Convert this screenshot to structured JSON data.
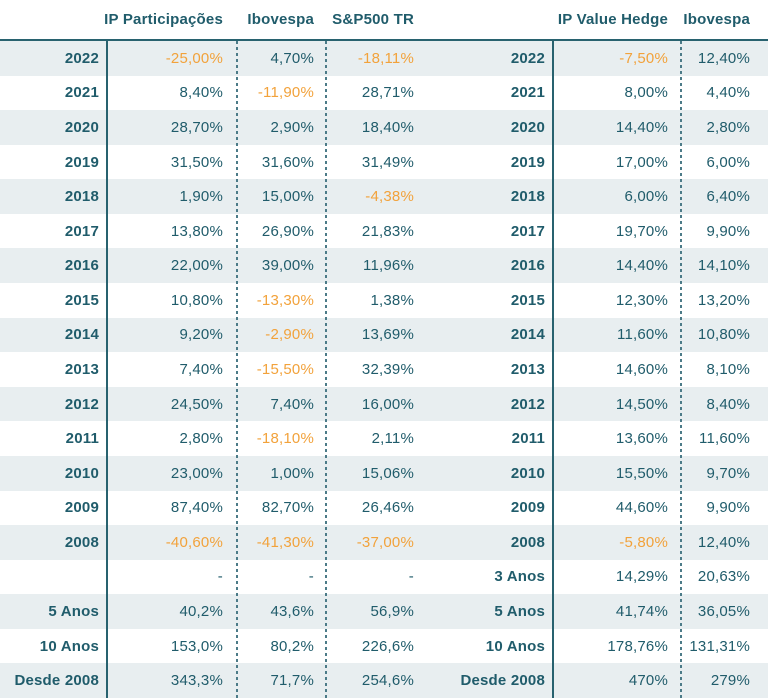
{
  "colors": {
    "teal": "#205C6B",
    "orange": "#F2A23B",
    "stripe": "#E8EEF0",
    "line_solid": "#28626F",
    "line_dashed": "#4C7B88"
  },
  "chart_data": [
    {
      "type": "table",
      "title": "IP Participações vs benchmarks — annual returns",
      "columns": [
        "",
        "IP Participações",
        "Ibovespa",
        "S&P500 TR"
      ],
      "rows": [
        [
          "2022",
          "-25,00%",
          "4,70%",
          "-18,11%"
        ],
        [
          "2021",
          "8,40%",
          "-11,90%",
          "28,71%"
        ],
        [
          "2020",
          "28,70%",
          "2,90%",
          "18,40%"
        ],
        [
          "2019",
          "31,50%",
          "31,60%",
          "31,49%"
        ],
        [
          "2018",
          "1,90%",
          "15,00%",
          "-4,38%"
        ],
        [
          "2017",
          "13,80%",
          "26,90%",
          "21,83%"
        ],
        [
          "2016",
          "22,00%",
          "39,00%",
          "11,96%"
        ],
        [
          "2015",
          "10,80%",
          "-13,30%",
          "1,38%"
        ],
        [
          "2014",
          "9,20%",
          "-2,90%",
          "13,69%"
        ],
        [
          "2013",
          "7,40%",
          "-15,50%",
          "32,39%"
        ],
        [
          "2012",
          "24,50%",
          "7,40%",
          "16,00%"
        ],
        [
          "2011",
          "2,80%",
          "-18,10%",
          "2,11%"
        ],
        [
          "2010",
          "23,00%",
          "1,00%",
          "15,06%"
        ],
        [
          "2009",
          "87,40%",
          "82,70%",
          "26,46%"
        ],
        [
          "2008",
          "-40,60%",
          "-41,30%",
          "-37,00%"
        ],
        [
          "",
          "-",
          "-",
          "-"
        ],
        [
          "5 Anos",
          "40,2%",
          "43,6%",
          "56,9%"
        ],
        [
          "10 Anos",
          "153,0%",
          "80,2%",
          "226,6%"
        ],
        [
          "Desde 2008",
          "343,3%",
          "71,7%",
          "254,6%"
        ]
      ]
    },
    {
      "type": "table",
      "title": "IP Value Hedge vs Ibovespa — annual returns",
      "columns": [
        "",
        "IP Value Hedge",
        "Ibovespa"
      ],
      "rows": [
        [
          "2022",
          "-7,50%",
          "12,40%"
        ],
        [
          "2021",
          "8,00%",
          "4,40%"
        ],
        [
          "2020",
          "14,40%",
          "2,80%"
        ],
        [
          "2019",
          "17,00%",
          "6,00%"
        ],
        [
          "2018",
          "6,00%",
          "6,40%"
        ],
        [
          "2017",
          "19,70%",
          "9,90%"
        ],
        [
          "2016",
          "14,40%",
          "14,10%"
        ],
        [
          "2015",
          "12,30%",
          "13,20%"
        ],
        [
          "2014",
          "11,60%",
          "10,80%"
        ],
        [
          "2013",
          "14,60%",
          "8,10%"
        ],
        [
          "2012",
          "14,50%",
          "8,40%"
        ],
        [
          "2011",
          "13,60%",
          "11,60%"
        ],
        [
          "2010",
          "15,50%",
          "9,70%"
        ],
        [
          "2009",
          "44,60%",
          "9,90%"
        ],
        [
          "2008",
          "-5,80%",
          "12,40%"
        ],
        [
          "3 Anos",
          "14,29%",
          "20,63%"
        ],
        [
          "5 Anos",
          "41,74%",
          "36,05%"
        ],
        [
          "10 Anos",
          "178,76%",
          "131,31%"
        ],
        [
          "Desde 2008",
          "470%",
          "279%"
        ]
      ]
    }
  ]
}
